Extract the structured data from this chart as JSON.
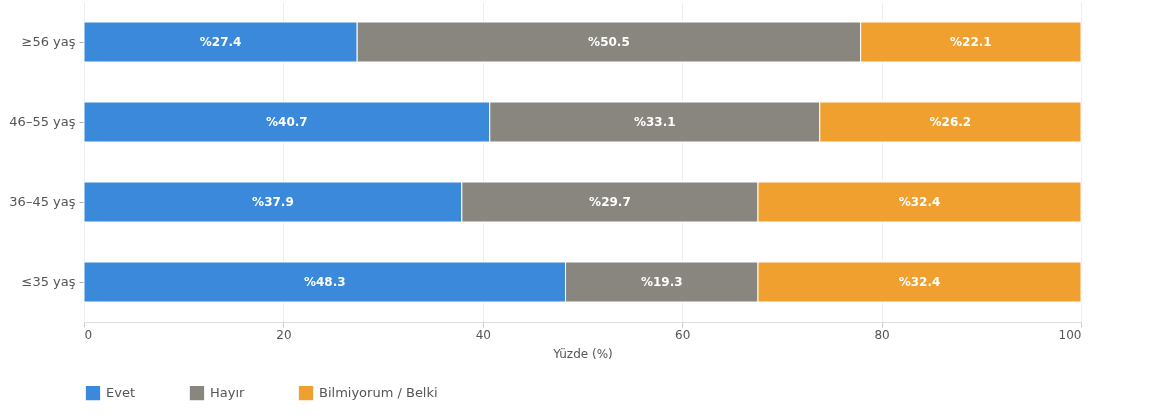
{
  "chart_data": {
    "type": "bar",
    "orientation": "horizontal",
    "stacked": true,
    "xlabel": "Yüzde (%)",
    "categories": [
      "≥56 yaş",
      "46–55 yaş",
      "36–45 yaş",
      "≤35 yaş"
    ],
    "xlim": [
      0,
      100
    ],
    "xticks": [
      0,
      20,
      40,
      60,
      80,
      100
    ],
    "grid": "x",
    "legend": "bottom",
    "series": [
      {
        "name": "Evet",
        "color": "#3a89db",
        "values": [
          27.4,
          40.7,
          37.9,
          48.3
        ],
        "value_labels": [
          "%27.4",
          "%40.7",
          "%37.9",
          "%48.3"
        ]
      },
      {
        "name": "Hayır",
        "color": "#88867f",
        "values": [
          50.5,
          33.1,
          29.7,
          19.3
        ],
        "value_labels": [
          "%50.5",
          "%33.1",
          "%29.7",
          "%19.3"
        ]
      },
      {
        "name": "Bilmiyorum / Belki",
        "color": "#f0a02e",
        "values": [
          22.1,
          26.2,
          32.4,
          32.4
        ],
        "value_labels": [
          "%22.1",
          "%26.2",
          "%32.4",
          "%32.4"
        ]
      }
    ]
  }
}
